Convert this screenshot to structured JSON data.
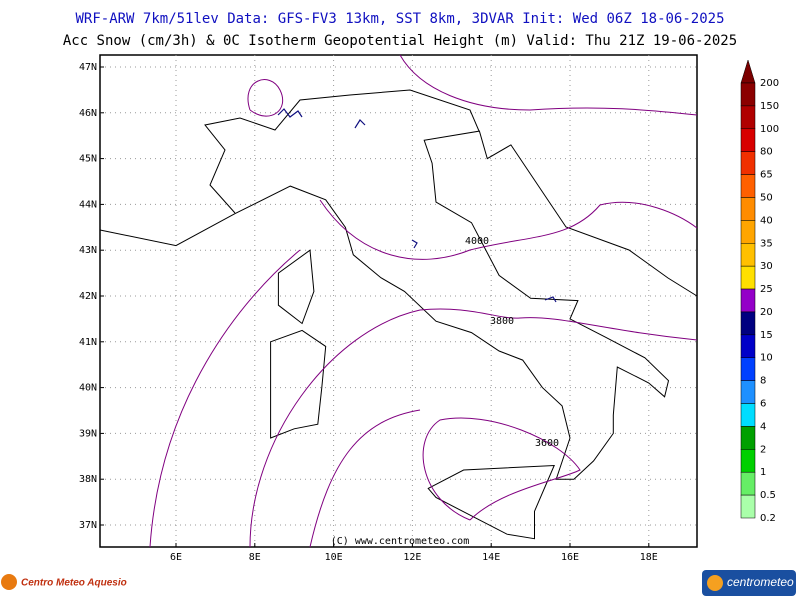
{
  "header": {
    "line1": "WRF-ARW 7km/51lev  Data: GFS-FV3 13km, SST 8km, 3DVAR  Init: Wed 06Z 18-06-2025",
    "line2": "Acc Snow (cm/3h) & 0C Isotherm Geopotential Height (m)  Valid: Thu 21Z 19-06-2025"
  },
  "map": {
    "lat_labels": [
      "47N",
      "46N",
      "45N",
      "44N",
      "43N",
      "42N",
      "41N",
      "40N",
      "39N",
      "38N",
      "37N"
    ],
    "lon_labels": [
      "6E",
      "8E",
      "10E",
      "12E",
      "14E",
      "16E",
      "18E"
    ],
    "contour_labels": [
      "4000",
      "3800",
      "3600"
    ],
    "copyright": "(C) www.centrometeo.com"
  },
  "colorbar": {
    "labels": [
      "200",
      "150",
      "100",
      "80",
      "65",
      "50",
      "40",
      "35",
      "30",
      "25",
      "20",
      "15",
      "10",
      "8",
      "6",
      "4",
      "2",
      "1",
      "0.5",
      "0.2"
    ],
    "colors": [
      "#7b0000",
      "#8b0000",
      "#b00000",
      "#d80000",
      "#f03000",
      "#ff6000",
      "#ff8c00",
      "#ffa500",
      "#ffc000",
      "#ffe000",
      "#9400c8",
      "#000080",
      "#0000c8",
      "#0040ff",
      "#1e90ff",
      "#00ddff",
      "#00a000",
      "#00d000",
      "#66ee66",
      "#aaffaa"
    ]
  },
  "logos": {
    "left": "Centro Meteo Aquesio",
    "right": "centrometeo"
  }
}
